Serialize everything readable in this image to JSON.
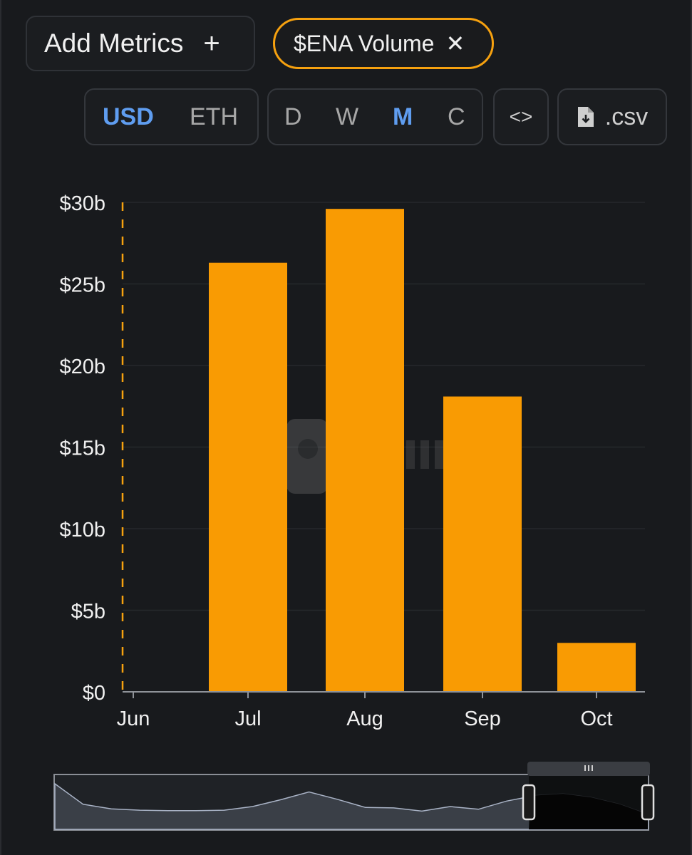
{
  "controls": {
    "add_metrics_label": "Add Metrics",
    "add_icon_glyph": "+",
    "metric_chip_label": "$ENA Volume",
    "close_icon_glyph": "✕",
    "currency_options": [
      "USD",
      "ETH"
    ],
    "currency_selected": "USD",
    "period_options": [
      "D",
      "W",
      "M",
      "C"
    ],
    "period_selected": "M",
    "embed_icon_glyph": "<>",
    "csv_label": ".csv"
  },
  "colors": {
    "bar": "#f99b03",
    "accent_outline": "#f6a10f",
    "selected_option": "#5f9df0"
  },
  "chart_data": {
    "type": "bar",
    "categories": [
      "Jun",
      "Jul",
      "Aug",
      "Sep",
      "Oct"
    ],
    "series": [
      {
        "values": [
          0,
          26.3,
          29.6,
          18.1,
          3.0
        ]
      }
    ],
    "y_tick_labels": [
      "$0",
      "$5b",
      "$10b",
      "$15b",
      "$20b",
      "$25b",
      "$30b"
    ],
    "y_ticks": [
      0,
      5,
      10,
      15,
      20,
      25,
      30
    ],
    "ylim": [
      0,
      30
    ],
    "unit": "billions USD",
    "grid": true,
    "legend": "none",
    "cursor_line_at": "Jun",
    "overview_series": [
      1.0,
      0.55,
      0.45,
      0.42,
      0.41,
      0.41,
      0.42,
      0.5,
      0.65,
      0.82,
      0.66,
      0.48,
      0.47,
      0.4,
      0.5,
      0.44,
      0.62,
      0.74,
      0.78,
      0.7,
      0.55,
      0.33
    ],
    "overview_selected_range": [
      "Jun",
      "Oct"
    ]
  }
}
